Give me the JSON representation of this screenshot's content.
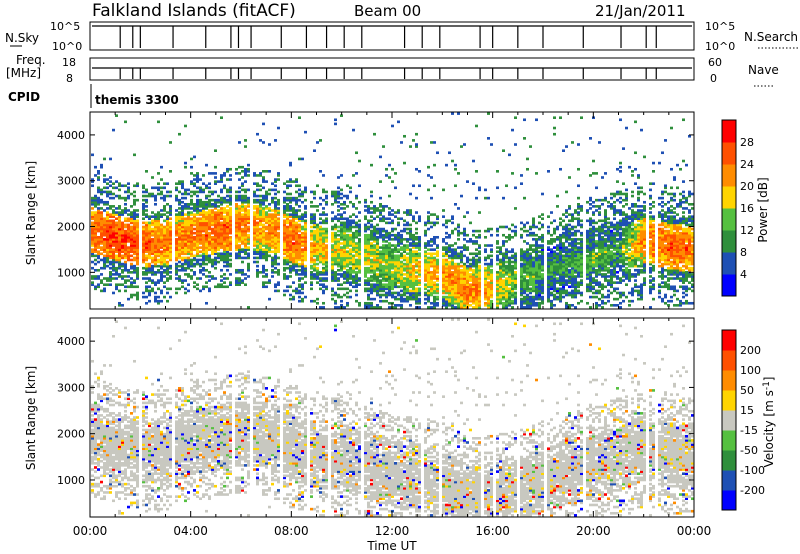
{
  "header": {
    "station": "Falkland Islands (fitACF)",
    "beam": "Beam 00",
    "date": "21/Jan/2011"
  },
  "status_panels": {
    "nsky_label": "N.Sky",
    "nsky_ticks": [
      "10^5",
      "10^0"
    ],
    "nsearch_label": "N.Search",
    "nsearch_ticks": [
      "10^5",
      "10^0"
    ],
    "freq_label_1": "Freq.",
    "freq_label_2": "[MHz]",
    "freq_ticks": [
      "18",
      "8"
    ],
    "nave_label": "Nave",
    "nave_ticks": [
      "60",
      "0"
    ],
    "cpid_label": "CPID",
    "cpid_value": "themis 3300"
  },
  "chart_data": [
    {
      "type": "heatmap",
      "title": "",
      "quantity": "Power",
      "ylabel": "Slant Range [km]",
      "xlabel": "Time UT",
      "xlim_hours": [
        0,
        24
      ],
      "ylim": [
        200,
        4500
      ],
      "yticks": [
        1000,
        2000,
        3000,
        4000
      ],
      "colorbar": {
        "label": "Power [dB]",
        "ticks": [
          "28",
          "24",
          "20",
          "16",
          "12",
          "8",
          "4"
        ],
        "colors": [
          "#0000ff",
          "#1e50b4",
          "#2f8f3c",
          "#55c040",
          "#ffd400",
          "#ff8c00",
          "#ff5000",
          "#ff0000"
        ]
      },
      "scatter_bands": [
        {
          "x": [
            0,
            1,
            2,
            3,
            4,
            5,
            6,
            7,
            8,
            9,
            10,
            11,
            12,
            13,
            14,
            15,
            16,
            17,
            18,
            19,
            20,
            21,
            22,
            23,
            24
          ],
          "y_center_km": [
            1900,
            1750,
            1600,
            1650,
            1800,
            1900,
            2000,
            1950,
            1700,
            1500,
            1500,
            1300,
            1100,
            1050,
            900,
            600,
            650,
            800,
            1000,
            1150,
            1300,
            1450,
            1700,
            1550,
            1500
          ],
          "power_db": [
            26,
            28,
            26,
            24,
            24,
            26,
            24,
            22,
            26,
            20,
            18,
            18,
            16,
            20,
            22,
            24,
            20,
            14,
            12,
            12,
            14,
            12,
            24,
            26,
            24
          ]
        }
      ]
    },
    {
      "type": "heatmap",
      "title": "",
      "quantity": "Velocity",
      "ylabel": "Slant Range [km]",
      "xlabel": "Time UT",
      "xlim_hours": [
        0,
        24
      ],
      "ylim": [
        200,
        4500
      ],
      "yticks": [
        1000,
        2000,
        3000,
        4000
      ],
      "colorbar": {
        "label": "Velocity [m s^-1]",
        "ticks": [
          "200",
          "100",
          "50",
          "15",
          "-15",
          "-50",
          "-100",
          "-200"
        ],
        "colors": [
          "#0000ff",
          "#1e50b4",
          "#2f8f3c",
          "#55c040",
          "#c8c8c0",
          "#ffd400",
          "#ff8c00",
          "#ff5000",
          "#ff0000"
        ]
      }
    }
  ],
  "xaxis": {
    "ticks": [
      "00:00",
      "04:00",
      "08:00",
      "12:00",
      "16:00",
      "20:00",
      "00:00"
    ],
    "label": "Time UT"
  }
}
